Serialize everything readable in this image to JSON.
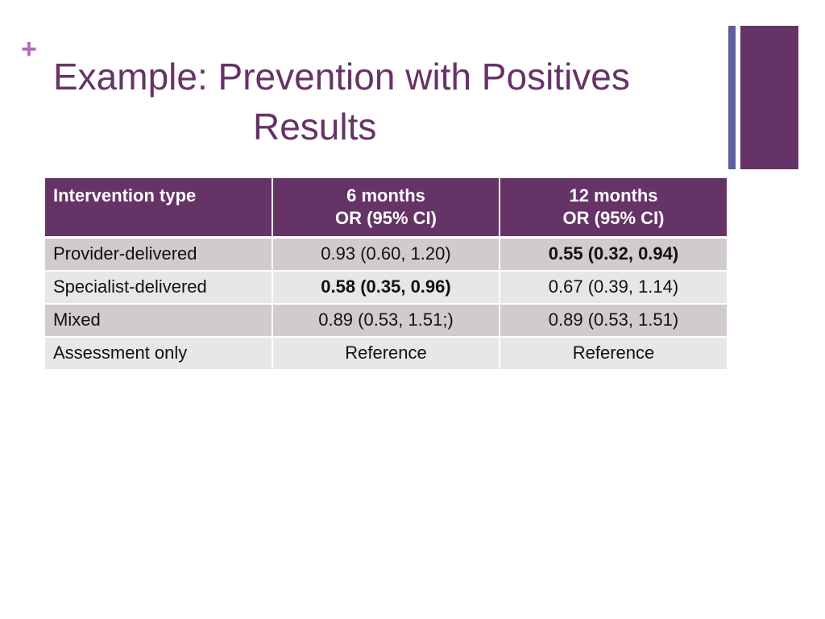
{
  "slide": {
    "bullet": "+",
    "title_line1": "Example:  Prevention with Positives",
    "title_line2": "Results"
  },
  "table": {
    "headers": [
      {
        "line1": "Intervention type",
        "line2": ""
      },
      {
        "line1": "6 months",
        "line2": "OR (95% CI)"
      },
      {
        "line1": "12 months",
        "line2": "OR (95% CI)"
      }
    ],
    "rows": [
      {
        "type": "Provider-delivered",
        "m6": "0.93 (0.60, 1.20)",
        "m12": "0.55 (0.32, 0.94)",
        "m6_bold": false,
        "m12_bold": true
      },
      {
        "type": "Specialist-delivered",
        "m6": "0.58 (0.35, 0.96)",
        "m12": "0.67 (0.39, 1.14)",
        "m6_bold": true,
        "m12_bold": false
      },
      {
        "type": "Mixed",
        "m6": "0.89 (0.53, 1.51;)",
        "m12": "0.89 (0.53, 1.51)",
        "m6_bold": false,
        "m12_bold": false
      },
      {
        "type": "Assessment only",
        "m6": "Reference",
        "m12": "Reference",
        "m6_bold": false,
        "m12_bold": false
      }
    ]
  },
  "colors": {
    "title": "#663366",
    "header_bg": "#663366",
    "accent_bar": "#5c5ea0",
    "bullet": "#b06ab3",
    "row_dark": "#d1cbd0",
    "row_light": "#e9e6e9"
  }
}
